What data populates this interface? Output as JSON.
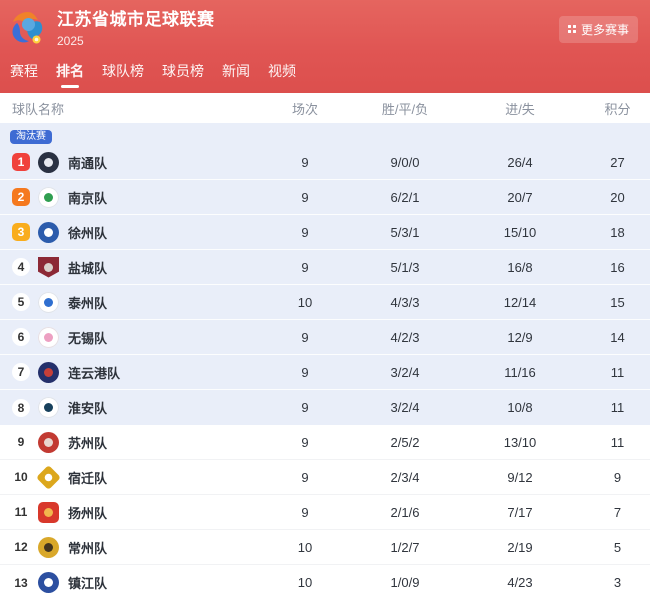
{
  "header": {
    "title": "江苏省城市足球联赛",
    "season": "2025",
    "more_label": "更多赛事",
    "accent_color": "#e05553"
  },
  "nav": {
    "tabs": [
      {
        "label": "赛程",
        "active": false
      },
      {
        "label": "排名",
        "active": true
      },
      {
        "label": "球队榜",
        "active": false
      },
      {
        "label": "球员榜",
        "active": false
      },
      {
        "label": "新闻",
        "active": false
      },
      {
        "label": "视频",
        "active": false
      }
    ]
  },
  "table": {
    "columns": [
      "球队名称",
      "场次",
      "胜/平/负",
      "进/失",
      "积分"
    ],
    "stage_badge": "淘汰赛",
    "stage_badge_color": "#3e6bd3",
    "knockout_zone_color": "#e9eef9",
    "rows": [
      {
        "rank": "1",
        "rank_badge": "#f0413c",
        "name": "南通队",
        "logo": {
          "shape": "circle",
          "bg": "#2a3142",
          "inner": "#e7e9ef"
        },
        "played": "9",
        "record": "9/0/0",
        "goals": "26/4",
        "points": "27",
        "zone": "blue"
      },
      {
        "rank": "2",
        "rank_badge": "#f5791f",
        "name": "南京队",
        "logo": {
          "shape": "circle",
          "bg": "#ffffff",
          "inner": "#2f9e50",
          "border": "#dfe3ea"
        },
        "played": "9",
        "record": "6/2/1",
        "goals": "20/7",
        "points": "20",
        "zone": "blue"
      },
      {
        "rank": "3",
        "rank_badge": "#f9ad1d",
        "name": "徐州队",
        "logo": {
          "shape": "circle",
          "bg": "#2c5cac",
          "inner": "#ffffff"
        },
        "played": "9",
        "record": "5/3/1",
        "goals": "15/10",
        "points": "18",
        "zone": "blue"
      },
      {
        "rank": "4",
        "rank_badge": "white",
        "name": "盐城队",
        "logo": {
          "shape": "shield",
          "bg": "#8c2936",
          "inner": "#d9d2cd"
        },
        "played": "9",
        "record": "5/1/3",
        "goals": "16/8",
        "points": "16",
        "zone": "blue"
      },
      {
        "rank": "5",
        "rank_badge": "white",
        "name": "泰州队",
        "logo": {
          "shape": "circle",
          "bg": "#ffffff",
          "inner": "#2f6fd0",
          "border": "#dfe3ea"
        },
        "played": "10",
        "record": "4/3/3",
        "goals": "12/14",
        "points": "15",
        "zone": "blue"
      },
      {
        "rank": "6",
        "rank_badge": "white",
        "name": "无锡队",
        "logo": {
          "shape": "circle",
          "bg": "#ffffff",
          "inner": "#eda0c2",
          "border": "#e6dfe4"
        },
        "played": "9",
        "record": "4/2/3",
        "goals": "12/9",
        "points": "14",
        "zone": "blue"
      },
      {
        "rank": "7",
        "rank_badge": "white",
        "name": "连云港队",
        "logo": {
          "shape": "circle",
          "bg": "#24306b",
          "inner": "#c63f38"
        },
        "played": "9",
        "record": "3/2/4",
        "goals": "11/16",
        "points": "11",
        "zone": "blue"
      },
      {
        "rank": "8",
        "rank_badge": "white",
        "name": "淮安队",
        "logo": {
          "shape": "circle",
          "bg": "#ffffff",
          "inner": "#17405c",
          "border": "#dfe3ea"
        },
        "played": "9",
        "record": "3/2/4",
        "goals": "10/8",
        "points": "11",
        "zone": "blue"
      },
      {
        "rank": "9",
        "rank_badge": "none",
        "name": "苏州队",
        "logo": {
          "shape": "circle",
          "bg": "#c23a32",
          "inner": "#e9d7d0"
        },
        "played": "9",
        "record": "2/5/2",
        "goals": "13/10",
        "points": "11",
        "zone": "white"
      },
      {
        "rank": "10",
        "rank_badge": "none",
        "name": "宿迁队",
        "logo": {
          "shape": "diamond",
          "bg": "#dca71c",
          "inner": "#ffffff"
        },
        "played": "9",
        "record": "2/3/4",
        "goals": "9/12",
        "points": "9",
        "zone": "white"
      },
      {
        "rank": "11",
        "rank_badge": "none",
        "name": "扬州队",
        "logo": {
          "shape": "square",
          "bg": "#d8382b",
          "inner": "#f2b64d"
        },
        "played": "9",
        "record": "2/1/6",
        "goals": "7/17",
        "points": "7",
        "zone": "white"
      },
      {
        "rank": "12",
        "rank_badge": "none",
        "name": "常州队",
        "logo": {
          "shape": "circle",
          "bg": "#d9a82a",
          "inner": "#43351f"
        },
        "played": "10",
        "record": "1/2/7",
        "goals": "2/19",
        "points": "5",
        "zone": "white"
      },
      {
        "rank": "13",
        "rank_badge": "none",
        "name": "镇江队",
        "logo": {
          "shape": "circle",
          "bg": "#2c4fa0",
          "inner": "#ffffff"
        },
        "played": "10",
        "record": "1/0/9",
        "goals": "4/23",
        "points": "3",
        "zone": "white"
      }
    ]
  }
}
